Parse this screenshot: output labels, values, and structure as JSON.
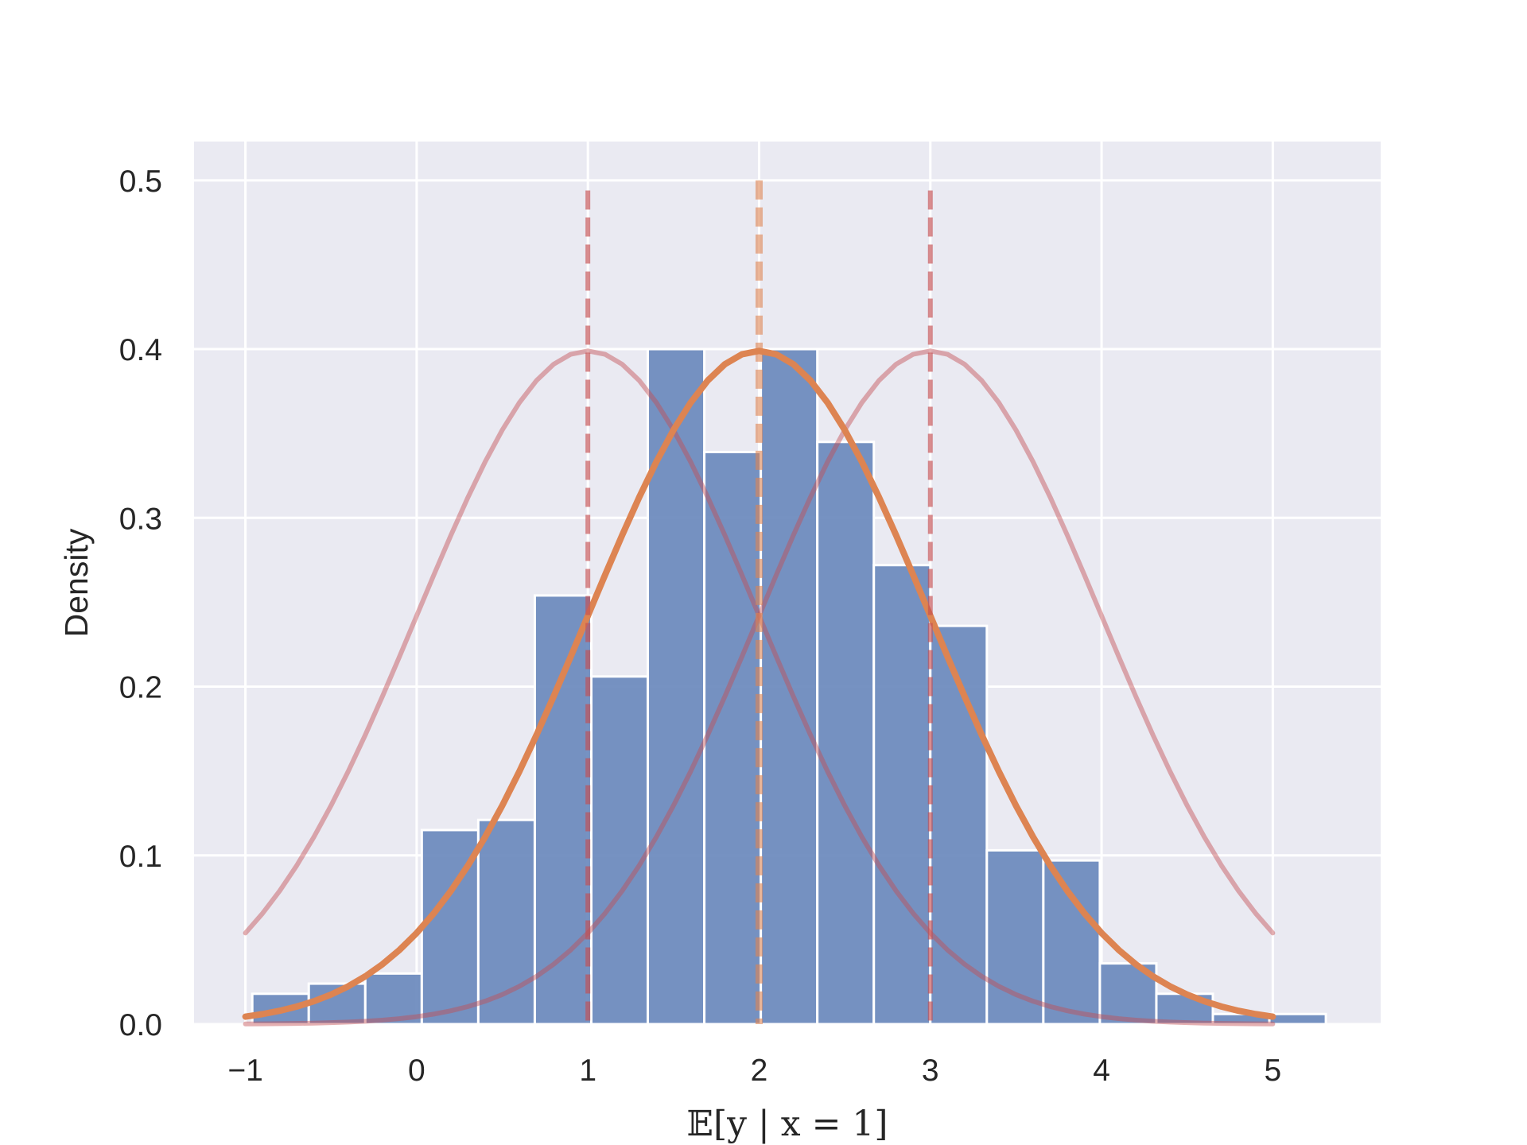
{
  "chart_data": {
    "type": "bar",
    "title": "",
    "xlabel": "𝔼[y | x = 1]",
    "ylabel": "Density",
    "xlim": [
      -1.3,
      5.63
    ],
    "ylim": [
      0,
      0.523
    ],
    "grid": true,
    "legend": "none",
    "x_ticks": [
      {
        "value": -1,
        "label": "−1"
      },
      {
        "value": 0,
        "label": "0"
      },
      {
        "value": 1,
        "label": "1"
      },
      {
        "value": 2,
        "label": "2"
      },
      {
        "value": 3,
        "label": "3"
      },
      {
        "value": 4,
        "label": "4"
      },
      {
        "value": 5,
        "label": "5"
      }
    ],
    "y_ticks": [
      {
        "value": 0.0,
        "label": "0.0"
      },
      {
        "value": 0.1,
        "label": "0.1"
      },
      {
        "value": 0.2,
        "label": "0.2"
      },
      {
        "value": 0.3,
        "label": "0.3"
      },
      {
        "value": 0.4,
        "label": "0.4"
      },
      {
        "value": 0.5,
        "label": "0.5"
      }
    ],
    "histogram": {
      "color": "#6a89bd",
      "bins": [
        {
          "x0": -0.96,
          "x1": -0.63,
          "value": 0.018
        },
        {
          "x0": -0.63,
          "x1": -0.3,
          "value": 0.024
        },
        {
          "x0": -0.3,
          "x1": 0.03,
          "value": 0.03
        },
        {
          "x0": 0.03,
          "x1": 0.36,
          "value": 0.115
        },
        {
          "x0": 0.36,
          "x1": 0.69,
          "value": 0.121
        },
        {
          "x0": 0.69,
          "x1": 1.02,
          "value": 0.254
        },
        {
          "x0": 1.02,
          "x1": 1.35,
          "value": 0.206
        },
        {
          "x0": 1.35,
          "x1": 1.68,
          "value": 0.4
        },
        {
          "x0": 1.68,
          "x1": 2.01,
          "value": 0.339
        },
        {
          "x0": 2.01,
          "x1": 2.34,
          "value": 0.4
        },
        {
          "x0": 2.34,
          "x1": 2.67,
          "value": 0.345
        },
        {
          "x0": 2.67,
          "x1": 3.0,
          "value": 0.272
        },
        {
          "x0": 3.0,
          "x1": 3.33,
          "value": 0.236
        },
        {
          "x0": 3.33,
          "x1": 3.66,
          "value": 0.103
        },
        {
          "x0": 3.66,
          "x1": 3.99,
          "value": 0.097
        },
        {
          "x0": 3.99,
          "x1": 4.32,
          "value": 0.036
        },
        {
          "x0": 4.32,
          "x1": 4.65,
          "value": 0.018
        },
        {
          "x0": 4.65,
          "x1": 4.98,
          "value": 0.006
        },
        {
          "x0": 4.98,
          "x1": 5.31,
          "value": 0.006
        }
      ]
    },
    "curves": [
      {
        "mean": 1,
        "std": 1,
        "x_range": [
          -1,
          5
        ],
        "color": "#c44e52",
        "opacity": 0.45,
        "emphasis": false
      },
      {
        "mean": 3,
        "std": 1,
        "x_range": [
          -1,
          5
        ],
        "color": "#c44e52",
        "opacity": 0.45,
        "emphasis": false
      },
      {
        "mean": 2,
        "std": 1,
        "x_range": [
          -1,
          5
        ],
        "color": "#dd8452",
        "opacity": 1.0,
        "emphasis": true
      }
    ],
    "vlines": [
      {
        "x": 1,
        "y_top": 0.494,
        "color": "#c44e52",
        "opacity": 0.65,
        "style": "dashed"
      },
      {
        "x": 3,
        "y_top": 0.494,
        "color": "#c44e52",
        "opacity": 0.65,
        "style": "dashed"
      },
      {
        "x": 2,
        "y_top": 0.5,
        "color": "#dd8452",
        "opacity": 0.6,
        "style": "dashed"
      }
    ]
  }
}
